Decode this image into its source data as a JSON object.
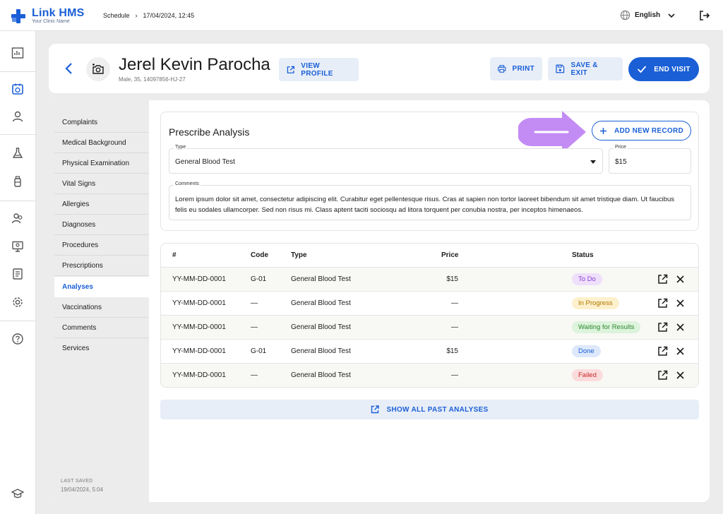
{
  "app": {
    "name": "Link HMS",
    "subtitle": "Your Clinic Name",
    "colors": {
      "primary": "#1a5fd6",
      "accent_hint": "#c38cf5"
    }
  },
  "breadcrumb": {
    "section": "Schedule",
    "separator": "›",
    "current": "17/04/2024, 12:45"
  },
  "language": {
    "selected": "English",
    "icon": "globe-icon"
  },
  "rail_icons": [
    "dashboard-icon",
    "calendar-icon",
    "user-icon",
    "flask-icon",
    "bottle-icon",
    "team-icon",
    "monitor-icon",
    "report-icon",
    "settings-icon",
    "help-icon",
    "graduation-cap-icon"
  ],
  "patient": {
    "name": "Jerel Kevin Parocha",
    "meta": "Male, 35, 14097856-HJ-27"
  },
  "header_actions": {
    "view_profile": "VIEW PROFILE",
    "print": "PRINT",
    "save_exit": "SAVE & EXIT",
    "end_visit": "END VISIT"
  },
  "subnav": {
    "items": [
      {
        "label": "Complaints"
      },
      {
        "label": "Medical Background"
      },
      {
        "label": "Physical Examination"
      },
      {
        "label": "Vital Signs"
      },
      {
        "label": "Allergies"
      },
      {
        "label": "Diagnoses"
      },
      {
        "label": "Procedures"
      },
      {
        "label": "Prescriptions"
      },
      {
        "label": "Analyses"
      },
      {
        "label": "Vaccinations"
      },
      {
        "label": "Comments"
      },
      {
        "label": "Services"
      }
    ],
    "active": "Analyses",
    "last_saved_label": "LAST SAVED",
    "last_saved_value": "19/04/2024, 5:04"
  },
  "prescribe": {
    "title": "Prescribe Analysis",
    "add_button": "ADD NEW RECORD",
    "type_label": "Type",
    "type_value": "General Blood Test",
    "price_label": "Price",
    "price_value": "$15",
    "comments_label": "Comments",
    "comments_value": "Lorem ipsum dolor sit amet, consectetur adipiscing elit. Curabitur eget pellentesque risus. Cras at sapien non tortor laoreet bibendum sit amet tristique diam. Ut faucibus felis eu sodales ullamcorper. Sed non risus mi. Class aptent taciti sociosqu ad litora torquent per conubia nostra, per inceptos himenaeos."
  },
  "table": {
    "headers": {
      "num": "#",
      "code": "Code",
      "type": "Type",
      "price": "Price",
      "status": "Status"
    },
    "rows": [
      {
        "num": "YY-MM-DD-0001",
        "code": "G-01",
        "type": "General Blood Test",
        "price": "$15",
        "status": "To Do"
      },
      {
        "num": "YY-MM-DD-0001",
        "code": "—",
        "type": "General Blood Test",
        "price": "—",
        "status": "In Progress"
      },
      {
        "num": "YY-MM-DD-0001",
        "code": "—",
        "type": "General Blood Test",
        "price": "—",
        "status": "Waiting for Results"
      },
      {
        "num": "YY-MM-DD-0001",
        "code": "G-01",
        "type": "General Blood Test",
        "price": "$15",
        "status": "Done"
      },
      {
        "num": "YY-MM-DD-0001",
        "code": "—",
        "type": "General Blood Test",
        "price": "—",
        "status": "Failed"
      }
    ],
    "status_colors": {
      "To Do": {
        "bg": "#eedffb",
        "fg": "#8a3fd1"
      },
      "In Progress": {
        "bg": "#fdf0cc",
        "fg": "#b07400"
      },
      "Waiting for Results": {
        "bg": "#dcf3dc",
        "fg": "#2f8a2f"
      },
      "Done": {
        "bg": "#dde8fb",
        "fg": "#1a5fd6"
      },
      "Failed": {
        "bg": "#fbdcdc",
        "fg": "#c62828"
      }
    }
  },
  "show_all": "SHOW ALL PAST ANALYSES"
}
